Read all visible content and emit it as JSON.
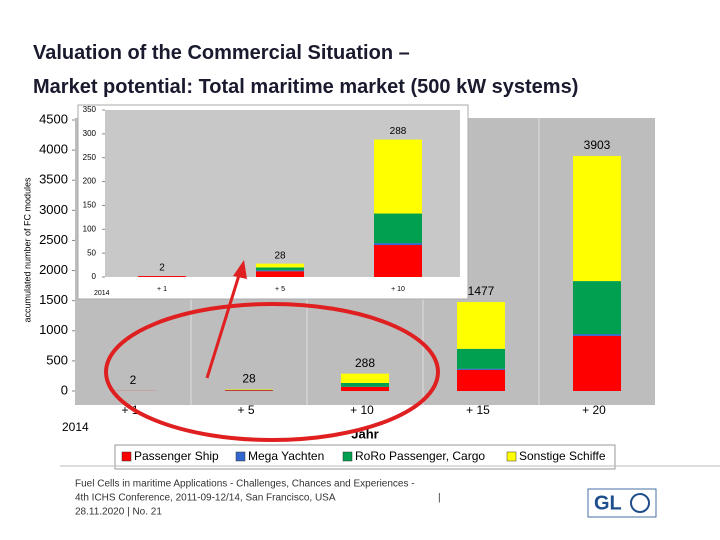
{
  "header": {
    "title_lines": [
      "Valuation of the Commercial Situation –",
      "Market potential: Total maritime market (500 kW systems)"
    ]
  },
  "chart_data": [
    {
      "type": "stacked-bar",
      "y_label": "accumulated number of FC modules",
      "x_label": "Jahr",
      "start_label": "2014",
      "categories": [
        "+ 1",
        "+ 5",
        "+ 10",
        "+ 15",
        "+ 20"
      ],
      "series": [
        {
          "name": "Passenger Ship",
          "color": "#ff0000",
          "values": [
            2,
            12,
            67,
            350,
            915
          ]
        },
        {
          "name": "Mega Yachten",
          "color": "#3366cc",
          "values": [
            0,
            2,
            4,
            20,
            30
          ]
        },
        {
          "name": "RoRo Passenger, Cargo",
          "color": "#00a050",
          "values": [
            0,
            6,
            62,
            330,
            880
          ]
        },
        {
          "name": "Sonstige Schiffe",
          "color": "#ffff00",
          "values": [
            0,
            8,
            155,
            777,
            2078
          ]
        }
      ],
      "totals": [
        2,
        28,
        288,
        1477,
        3903
      ],
      "ylim": [
        0,
        4500
      ],
      "yticks": [
        0,
        500,
        1000,
        1500,
        2000,
        2500,
        3000,
        3500,
        4000,
        4500
      ],
      "grid": false
    },
    {
      "type": "stacked-bar",
      "start_label": "2014",
      "categories": [
        "+ 1",
        "+ 5",
        "+ 10"
      ],
      "series": [
        {
          "color": "#ff0000",
          "values": [
            2,
            12,
            67
          ]
        },
        {
          "color": "#3366cc",
          "values": [
            0,
            2,
            4
          ]
        },
        {
          "color": "#00a050",
          "values": [
            0,
            6,
            62
          ]
        },
        {
          "color": "#ffff00",
          "values": [
            0,
            8,
            155
          ]
        }
      ],
      "totals": [
        2,
        28,
        288
      ],
      "ylim": [
        0,
        350
      ],
      "yticks": [
        0,
        50,
        100,
        150,
        200,
        250,
        300,
        350
      ],
      "grid": false
    }
  ],
  "footer": {
    "lines": [
      "Fuel Cells in maritime Applications - Challenges, Chances and Experiences -",
      "4th  ICHS Conference, 2011-09-12/14, San Francisco, USA",
      "28.11.2020  |  No. 21"
    ],
    "separator": "|",
    "logo": "GL"
  }
}
